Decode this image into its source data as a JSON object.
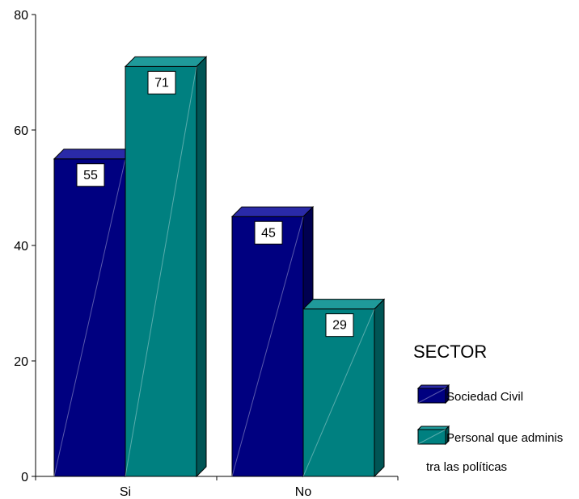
{
  "chart_data": {
    "type": "bar",
    "categories": [
      "Si",
      "No"
    ],
    "series": [
      {
        "name": "Sociedad Civil",
        "values": [
          55,
          45
        ]
      },
      {
        "name": "Personal que adminis tra las políticas",
        "values": [
          71,
          29
        ]
      }
    ],
    "data_labels": [
      [
        "55",
        "45"
      ],
      [
        "71",
        "29"
      ]
    ],
    "ylim": [
      0,
      80
    ],
    "yticks": [
      0,
      20,
      40,
      60,
      80
    ],
    "title": "",
    "xlabel": "",
    "ylabel": "",
    "grid": false,
    "legend": {
      "title": "SECTOR",
      "placement": "right",
      "entries": [
        {
          "lines": [
            "Sociedad Civil"
          ]
        },
        {
          "lines": [
            "Personal que adminis",
            "tra las políticas"
          ]
        }
      ]
    },
    "colors": {
      "series": [
        "#000080",
        "#008080"
      ],
      "series_dark": [
        "#000050",
        "#005555"
      ],
      "series_light": [
        "#2a2aa8",
        "#1f9a9a"
      ]
    }
  }
}
